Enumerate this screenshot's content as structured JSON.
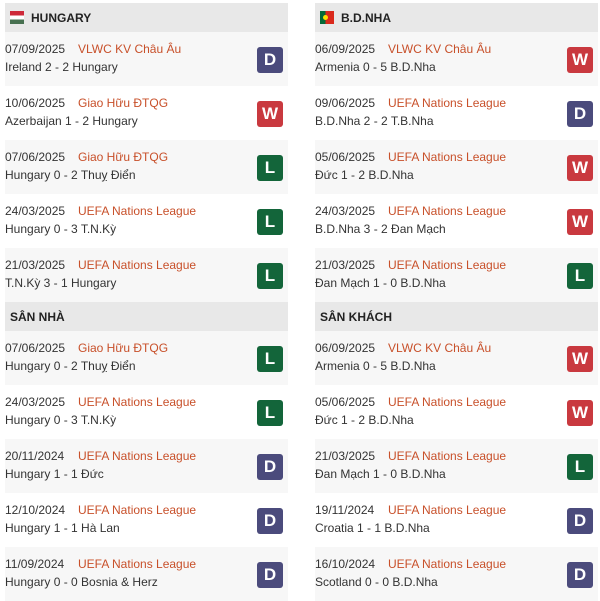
{
  "colors": {
    "D": "#4b4b7c",
    "W": "#c9393f",
    "L": "#13653a"
  },
  "panels": [
    {
      "title": "HUNGARY",
      "flag": "hungary-flag",
      "matches": [
        {
          "date": "07/09/2025",
          "comp": "VLWC KV Châu Âu",
          "score": "Ireland 2 - 2 Hungary",
          "result": "D"
        },
        {
          "date": "10/06/2025",
          "comp": "Giao Hữu ĐTQG",
          "score": "Azerbaijan 1 - 2 Hungary",
          "result": "W"
        },
        {
          "date": "07/06/2025",
          "comp": "Giao Hữu ĐTQG",
          "score": "Hungary 0 - 2 Thuỵ Điển",
          "result": "L"
        },
        {
          "date": "24/03/2025",
          "comp": "UEFA Nations League",
          "score": "Hungary 0 - 3 T.N.Kỳ",
          "result": "L"
        },
        {
          "date": "21/03/2025",
          "comp": "UEFA Nations League",
          "score": "T.N.Kỳ 3 - 1 Hungary",
          "result": "L"
        }
      ]
    },
    {
      "title": "B.D.NHA",
      "flag": "portugal-flag",
      "matches": [
        {
          "date": "06/09/2025",
          "comp": "VLWC KV Châu Âu",
          "score": "Armenia 0 - 5 B.D.Nha",
          "result": "W"
        },
        {
          "date": "09/06/2025",
          "comp": "UEFA Nations League",
          "score": "B.D.Nha 2 - 2 T.B.Nha",
          "result": "D"
        },
        {
          "date": "05/06/2025",
          "comp": "UEFA Nations League",
          "score": "Đức 1 - 2 B.D.Nha",
          "result": "W"
        },
        {
          "date": "24/03/2025",
          "comp": "UEFA Nations League",
          "score": "B.D.Nha 3 - 2 Đan Mạch",
          "result": "W"
        },
        {
          "date": "21/03/2025",
          "comp": "UEFA Nations League",
          "score": "Đan Mạch 1 - 0 B.D.Nha",
          "result": "L"
        }
      ]
    },
    {
      "title": "SÂN NHÀ",
      "matches": [
        {
          "date": "07/06/2025",
          "comp": "Giao Hữu ĐTQG",
          "score": "Hungary 0 - 2 Thuỵ Điển",
          "result": "L"
        },
        {
          "date": "24/03/2025",
          "comp": "UEFA Nations League",
          "score": "Hungary 0 - 3 T.N.Kỳ",
          "result": "L"
        },
        {
          "date": "20/11/2024",
          "comp": "UEFA Nations League",
          "score": "Hungary 1 - 1 Đức",
          "result": "D"
        },
        {
          "date": "12/10/2024",
          "comp": "UEFA Nations League",
          "score": "Hungary 1 - 1 Hà Lan",
          "result": "D"
        },
        {
          "date": "11/09/2024",
          "comp": "UEFA Nations League",
          "score": "Hungary 0 - 0 Bosnia & Herz",
          "result": "D"
        }
      ]
    },
    {
      "title": "SÂN KHÁCH",
      "matches": [
        {
          "date": "06/09/2025",
          "comp": "VLWC KV Châu Âu",
          "score": "Armenia 0 - 5 B.D.Nha",
          "result": "W"
        },
        {
          "date": "05/06/2025",
          "comp": "UEFA Nations League",
          "score": "Đức 1 - 2 B.D.Nha",
          "result": "W"
        },
        {
          "date": "21/03/2025",
          "comp": "UEFA Nations League",
          "score": "Đan Mạch 1 - 0 B.D.Nha",
          "result": "L"
        },
        {
          "date": "19/11/2024",
          "comp": "UEFA Nations League",
          "score": "Croatia 1 - 1 B.D.Nha",
          "result": "D"
        },
        {
          "date": "16/10/2024",
          "comp": "UEFA Nations League",
          "score": "Scotland 0 - 0 B.D.Nha",
          "result": "D"
        }
      ]
    }
  ]
}
